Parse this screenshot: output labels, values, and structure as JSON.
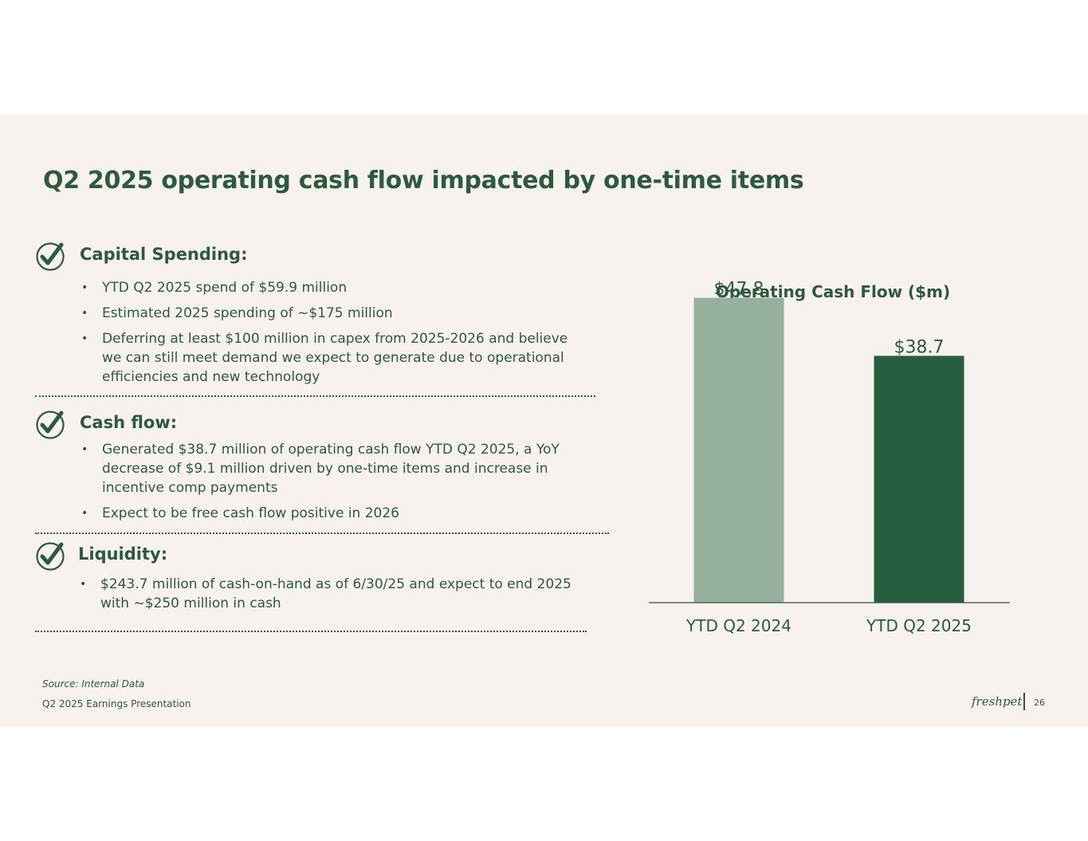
{
  "slide": {
    "title": "Q2 2025 operating cash flow impacted by one-time items",
    "sections": [
      {
        "heading": "Capital Spending:",
        "bullets": [
          "YTD Q2 2025 spend of $59.9 million",
          "Estimated 2025 spending of ~$175 million",
          "Deferring at least $100 million in capex from 2025-2026 and believe we can still meet demand we expect to generate due to operational efficiencies and new technology"
        ]
      },
      {
        "heading": "Cash flow:",
        "bullets": [
          "Generated $38.7 million of operating cash flow YTD Q2 2025, a YoY decrease of $9.1 million driven by one-time items and increase in incentive comp payments",
          "Expect to be free cash flow positive in 2026"
        ]
      },
      {
        "heading": "Liquidity:",
        "bullets": [
          "$243.7 million of cash-on-hand as of 6/30/25 and expect to end 2025 with ~$250 million in cash"
        ]
      }
    ],
    "source": "Source: Internal Data",
    "footer": "Q2 2025 Earnings Presentation",
    "logo_text": "freshpet",
    "page_number": "26",
    "icon": "checkmark-circle-icon"
  },
  "chart_data": {
    "type": "bar",
    "title": "Operating Cash Flow ($m)",
    "categories": [
      "YTD Q2 2024",
      "YTD Q2 2025"
    ],
    "values": [
      47.8,
      38.7
    ],
    "data_labels": [
      "$47.8",
      "$38.7"
    ],
    "colors": [
      "#96b09f",
      "#265f3f"
    ],
    "ylim": [
      0,
      50
    ],
    "grid": false,
    "legend": "none"
  },
  "colors": {
    "accent": "#2a5a3f",
    "slide_bg": "#f7f2ee"
  }
}
